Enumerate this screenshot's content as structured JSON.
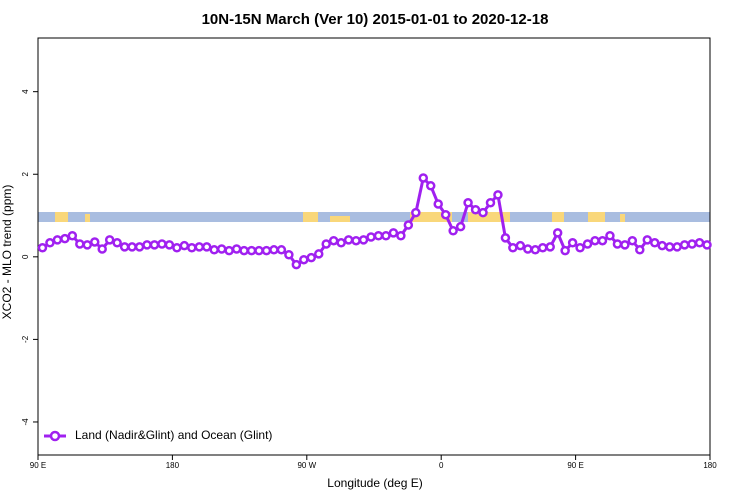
{
  "chart_data": {
    "type": "line",
    "title": "10N-15N March (Ver 10)   2015-01-01 to 2020-12-18",
    "x_label": "Longitude (deg E)",
    "y_label": "XCO2 - MLO trend (ppm)",
    "xlim": [
      90,
      540
    ],
    "xticks": [
      {
        "value": 90,
        "label": "90 E"
      },
      {
        "value": 180,
        "label": "180"
      },
      {
        "value": 270,
        "label": "90 W"
      },
      {
        "value": 360,
        "label": "0"
      },
      {
        "value": 450,
        "label": "90 E"
      },
      {
        "value": 540,
        "label": "180"
      }
    ],
    "ylim": [
      -4.8,
      5.3
    ],
    "yticks": [
      -4,
      -2,
      0,
      2,
      4
    ],
    "grid": false,
    "legend": "bottom-left",
    "x": [
      93,
      98,
      103,
      108,
      113,
      118,
      123,
      128,
      133,
      138,
      143,
      148,
      153,
      158,
      163,
      168,
      173,
      178,
      183,
      188,
      193,
      198,
      203,
      208,
      213,
      218,
      223,
      228,
      233,
      238,
      243,
      248,
      253,
      258,
      263,
      268,
      273,
      278,
      283,
      288,
      293,
      298,
      303,
      308,
      313,
      318,
      323,
      328,
      333,
      338,
      343,
      348,
      353,
      358,
      363,
      368,
      373,
      378,
      383,
      388,
      393,
      398,
      403,
      408,
      413,
      418,
      423,
      428,
      433,
      438,
      443,
      448,
      453,
      458,
      463,
      468,
      473,
      478,
      483,
      488,
      493,
      498,
      503,
      508,
      513,
      518,
      523,
      528,
      533,
      538
    ],
    "series": [
      {
        "name": "Land (Nadir&Glint) and Ocean (Glint)",
        "color": "#a020f0",
        "values": [
          0.22,
          0.34,
          0.41,
          0.44,
          0.51,
          0.31,
          0.29,
          0.36,
          0.19,
          0.41,
          0.34,
          0.24,
          0.24,
          0.24,
          0.29,
          0.29,
          0.31,
          0.29,
          0.22,
          0.27,
          0.22,
          0.24,
          0.24,
          0.17,
          0.19,
          0.15,
          0.19,
          0.15,
          0.15,
          0.15,
          0.15,
          0.17,
          0.17,
          0.05,
          -0.19,
          -0.07,
          -0.02,
          0.07,
          0.31,
          0.39,
          0.34,
          0.41,
          0.39,
          0.41,
          0.48,
          0.51,
          0.51,
          0.58,
          0.51,
          0.77,
          1.07,
          1.91,
          1.72,
          1.28,
          1.02,
          0.63,
          0.73,
          1.31,
          1.14,
          1.07,
          1.31,
          1.5,
          0.46,
          0.22,
          0.27,
          0.19,
          0.17,
          0.22,
          0.24,
          0.58,
          0.15,
          0.34,
          0.22,
          0.31,
          0.39,
          0.39,
          0.51,
          0.31,
          0.29,
          0.39,
          0.17,
          0.41,
          0.34,
          0.27,
          0.24,
          0.24,
          0.29,
          0.31,
          0.34,
          0.29
        ]
      }
    ]
  }
}
